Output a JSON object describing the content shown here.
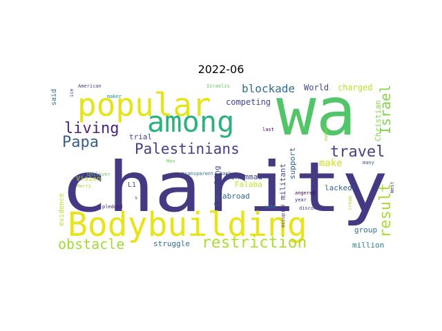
{
  "title": "2022-06",
  "words": [
    {
      "text": "wa",
      "color": "#52c569"
    },
    {
      "text": "charity",
      "color": "#443983"
    },
    {
      "text": "popular",
      "color": "#e4e419"
    },
    {
      "text": "among",
      "color": "#2db27d"
    },
    {
      "text": "Bodybuilding",
      "color": "#e8e419"
    },
    {
      "text": "Palestinians",
      "color": "#433e85"
    },
    {
      "text": "living",
      "color": "#482475"
    },
    {
      "text": "Papa",
      "color": "#355f8d"
    },
    {
      "text": "travel",
      "color": "#433e85"
    },
    {
      "text": "restriction",
      "color": "#addc30"
    },
    {
      "text": "obstacle",
      "color": "#a2da37"
    },
    {
      "text": "blockade",
      "color": "#2f6c8e"
    },
    {
      "text": "result",
      "color": "#a8db34"
    },
    {
      "text": "Israel",
      "color": "#84d44b"
    },
    {
      "text": "make",
      "color": "#d0e11c"
    },
    {
      "text": "competing",
      "color": "#404688"
    },
    {
      "text": "World",
      "color": "#3e4989"
    },
    {
      "text": "charged",
      "color": "#bddf26"
    },
    {
      "text": "Christian",
      "color": "#86d549"
    },
    {
      "text": "Mohammad",
      "color": "#414487"
    },
    {
      "text": "Falaba",
      "color": "#c2df23"
    },
    {
      "text": "funneling",
      "color": "#3b528b"
    },
    {
      "text": "abroad",
      "color": "#31688e"
    },
    {
      "text": "militant",
      "color": "#3e4a89"
    },
    {
      "text": "support",
      "color": "#33628d"
    },
    {
      "text": "lacked",
      "color": "#33638d"
    },
    {
      "text": "group",
      "color": "#2c728e"
    },
    {
      "text": "million",
      "color": "#287d8e"
    },
    {
      "text": "struggle",
      "color": "#2d708e"
    },
    {
      "text": "Vision",
      "color": "#b0dd2f"
    },
    {
      "text": "L1",
      "color": "#3b528b"
    },
    {
      "text": "trial",
      "color": "#414487"
    },
    {
      "text": "evidence",
      "color": "#b5de2b"
    },
    {
      "text": "said",
      "color": "#2e6e8e"
    },
    {
      "text": "American",
      "color": "#424086"
    },
    {
      "text": "Israelis",
      "color": "#5ec962"
    },
    {
      "text": "ice",
      "color": "#3b528b"
    },
    {
      "text": "maker",
      "color": "#21918c"
    },
    {
      "text": "transparent",
      "color": "#2c718e"
    },
    {
      "text": "Bank",
      "color": "#3b528b"
    },
    {
      "text": "Unilever",
      "color": "#65cb5e"
    },
    {
      "text": "Men",
      "color": "#75d054"
    },
    {
      "text": "Merry",
      "color": "#a5db36"
    },
    {
      "text": "pledged",
      "color": "#481769"
    },
    {
      "text": "s",
      "color": "#3b528b"
    },
    {
      "text": "angered",
      "color": "#440154"
    },
    {
      "text": "year",
      "color": "#482878"
    },
    {
      "text": "occupied",
      "color": "#472c7a"
    },
    {
      "text": "sale",
      "color": "#26828e"
    },
    {
      "text": "discontinue",
      "color": "#433e85"
    },
    {
      "text": "last",
      "color": "#440154"
    },
    {
      "text": "owned",
      "color": "#8fd744"
    },
    {
      "text": "many",
      "color": "#39558c"
    },
    {
      "text": "cream",
      "color": "#b0dd2f"
    },
    {
      "text": "West",
      "color": "#3e4a89"
    }
  ]
}
